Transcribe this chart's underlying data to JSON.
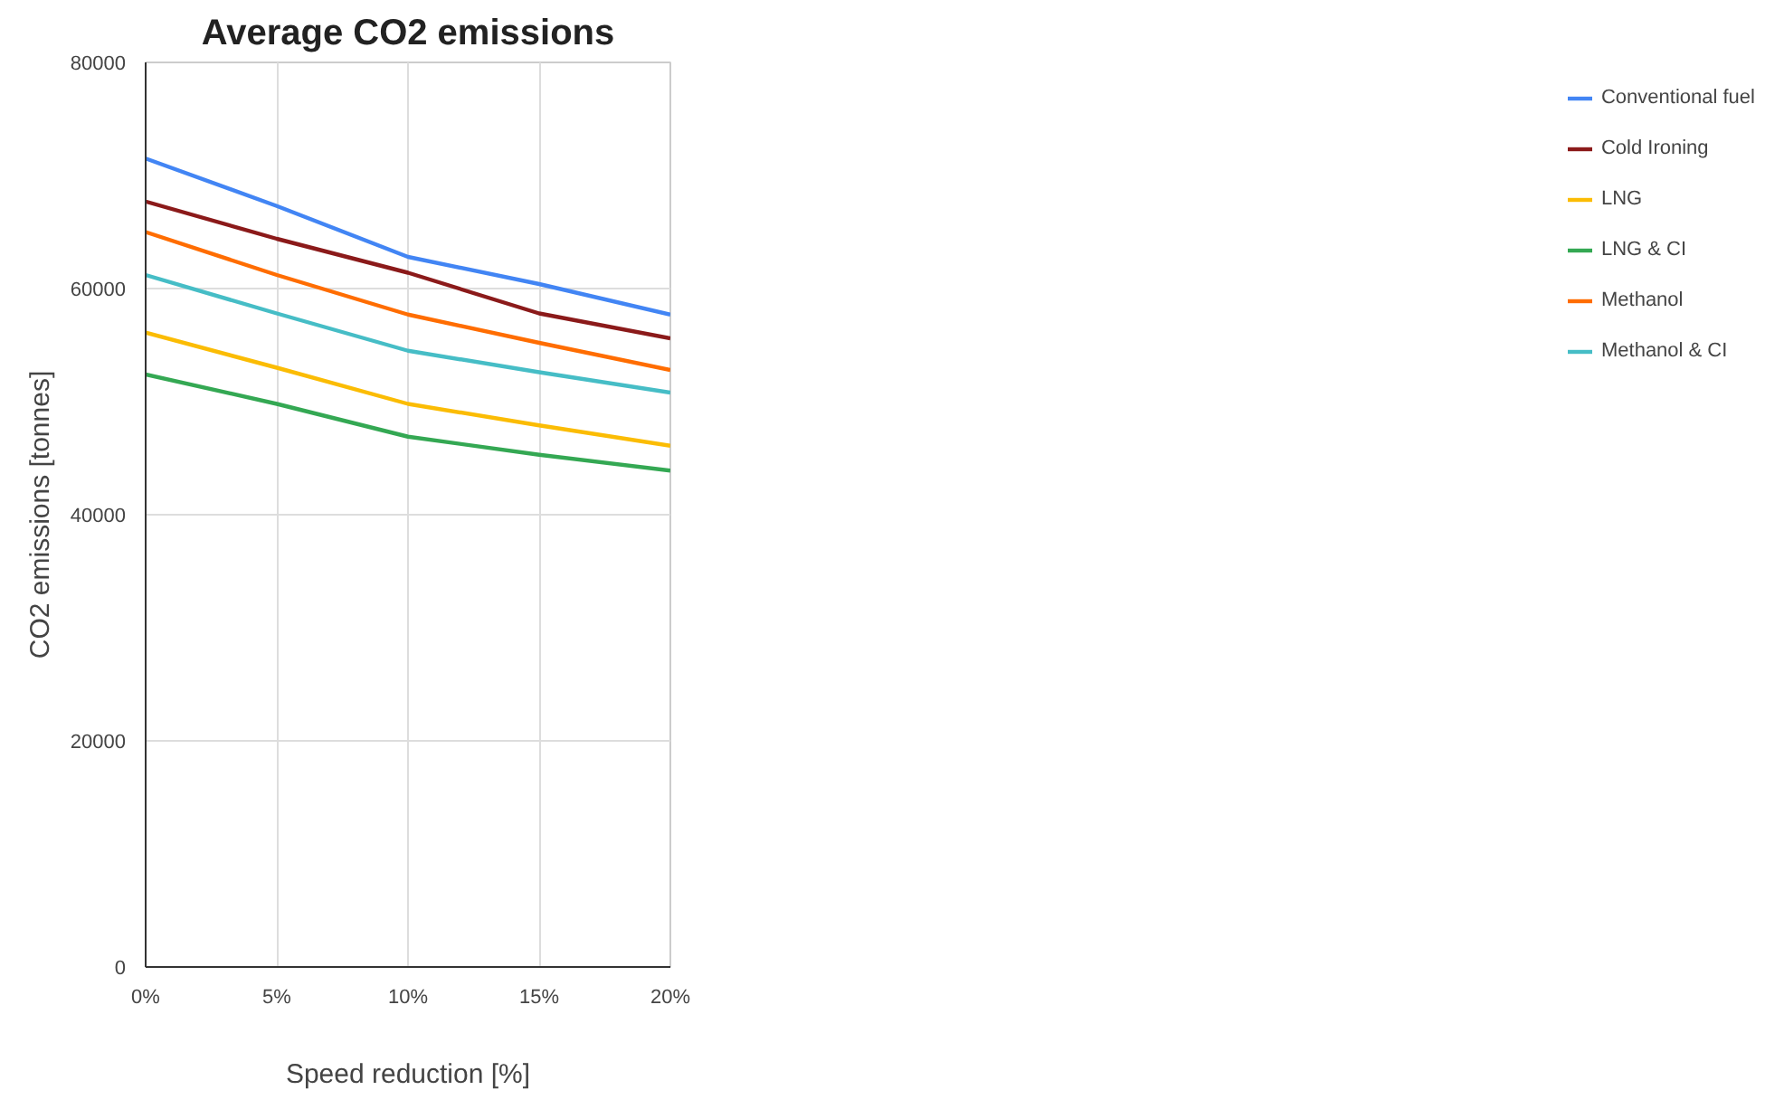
{
  "chart_data": {
    "type": "line",
    "title": "Average CO2 emissions",
    "xlabel": "Speed reduction [%]",
    "ylabel": "CO2 emissions [tonnes]",
    "x": [
      0,
      5,
      10,
      15,
      20
    ],
    "xlim": [
      0,
      20
    ],
    "xticks": [
      {
        "value": 0,
        "label": "0%"
      },
      {
        "value": 5,
        "label": "5%"
      },
      {
        "value": 10,
        "label": "10%"
      },
      {
        "value": 15,
        "label": "15%"
      },
      {
        "value": 20,
        "label": "20%"
      }
    ],
    "ylim": [
      0,
      80000
    ],
    "yticks": [
      0,
      20000,
      40000,
      60000,
      80000
    ],
    "grid": true,
    "legend": "right",
    "marker": "none",
    "line_style": "solid",
    "series": [
      {
        "name": "Conventional fuel",
        "color": "#4285f4",
        "values": [
          71500,
          67300,
          62800,
          60400,
          57700
        ]
      },
      {
        "name": "Cold Ironing",
        "color": "#8b1a1a",
        "values": [
          67700,
          64400,
          61400,
          57800,
          55600
        ]
      },
      {
        "name": "LNG",
        "color": "#fbbc04",
        "values": [
          56100,
          53000,
          49800,
          47900,
          46100
        ]
      },
      {
        "name": "LNG & CI",
        "color": "#34a853",
        "values": [
          52400,
          49800,
          46900,
          45300,
          43900
        ]
      },
      {
        "name": "Methanol",
        "color": "#ff6d01",
        "values": [
          65000,
          61200,
          57700,
          55200,
          52800
        ]
      },
      {
        "name": "Methanol & CI",
        "color": "#46bdc6",
        "values": [
          61200,
          57800,
          54500,
          52600,
          50800
        ]
      }
    ]
  }
}
